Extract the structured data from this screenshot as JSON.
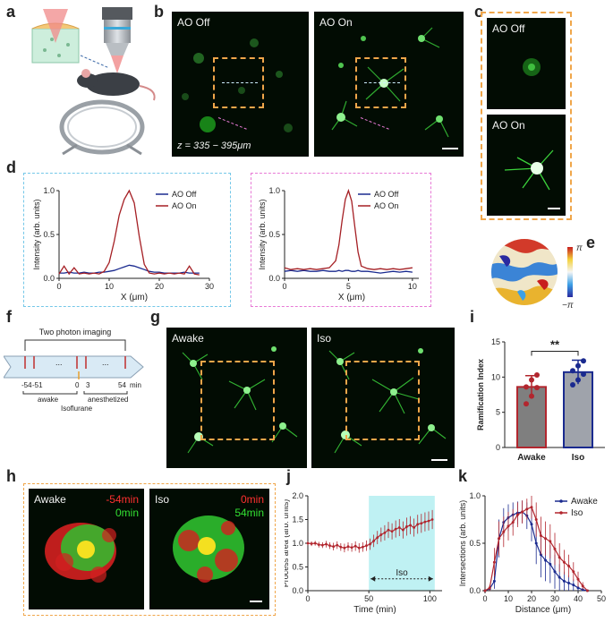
{
  "panel_labels": [
    "a",
    "b",
    "c",
    "d",
    "e",
    "f",
    "g",
    "h",
    "i",
    "j",
    "k"
  ],
  "b": {
    "left_tag": "AO Off",
    "right_tag": "AO On",
    "zlabel": "z = 335 − 395μm"
  },
  "c": {
    "top_tag": "AO Off",
    "bottom_tag": "AO On"
  },
  "e": {
    "pos_label": "π",
    "neg_label": "−π"
  },
  "f": {
    "bracket_label": "Two photon imaging",
    "ellipsis": "...",
    "ticks": [
      "-54",
      "-51",
      "0",
      "3",
      "54"
    ],
    "unit": "min",
    "awake_label": "awake",
    "anes_label": "anesthetized",
    "iso_label": "Isoflurane"
  },
  "g": {
    "left_tag": "Awake",
    "right_tag": "Iso"
  },
  "h": {
    "left_tag": "Awake",
    "left_t1": "-54min",
    "left_t2": "0min",
    "right_tag": "Iso",
    "right_t1": "0min",
    "right_t2": "54min"
  },
  "colors": {
    "ao_off": "#1a2a8f",
    "ao_on": "#a51f24",
    "awake": "#1a2a8f",
    "iso": "#b2262e",
    "cyan_box": "#74c7e8",
    "pink_box": "#e87ad6",
    "orange_box": "#f0a64a"
  },
  "chart_data": [
    {
      "id": "d-left",
      "type": "line",
      "xlabel": "X (μm)",
      "ylabel": "Intensity (arb. units)",
      "xlim": [
        0,
        30
      ],
      "ylim": [
        0,
        1.0
      ],
      "xticks": [
        "0",
        "10",
        "20",
        "30"
      ],
      "yticks": [
        "0.0",
        "0.5",
        "1.0"
      ],
      "legend": [
        "AO Off",
        "AO On"
      ],
      "x": [
        0,
        1,
        2,
        3,
        4,
        5,
        6,
        7,
        8,
        9,
        10,
        11,
        12,
        13,
        14,
        15,
        16,
        17,
        18,
        19,
        20,
        21,
        22,
        23,
        24,
        25,
        26,
        27,
        28
      ],
      "series": [
        {
          "name": "AO Off",
          "values": [
            0.06,
            0.06,
            0.07,
            0.06,
            0.06,
            0.07,
            0.06,
            0.06,
            0.07,
            0.07,
            0.08,
            0.09,
            0.11,
            0.13,
            0.15,
            0.14,
            0.12,
            0.1,
            0.08,
            0.07,
            0.07,
            0.06,
            0.06,
            0.06,
            0.06,
            0.07,
            0.06,
            0.06,
            0.06
          ]
        },
        {
          "name": "AO On",
          "values": [
            0.05,
            0.14,
            0.05,
            0.12,
            0.05,
            0.06,
            0.05,
            0.06,
            0.05,
            0.08,
            0.18,
            0.42,
            0.72,
            0.9,
            1.0,
            0.86,
            0.48,
            0.16,
            0.06,
            0.05,
            0.06,
            0.05,
            0.06,
            0.05,
            0.06,
            0.05,
            0.14,
            0.05,
            0.04
          ]
        }
      ]
    },
    {
      "id": "d-right",
      "type": "line",
      "xlabel": "X (μm)",
      "ylabel": "Intensity (arb. units)",
      "xlim": [
        0,
        10.5
      ],
      "ylim": [
        0,
        1.0
      ],
      "xticks": [
        "0",
        "5",
        "10"
      ],
      "yticks": [
        "0.0",
        "0.5",
        "1.0"
      ],
      "legend": [
        "AO Off",
        "AO On"
      ],
      "x": [
        0,
        0.5,
        1,
        1.5,
        2,
        2.5,
        3,
        3.5,
        4,
        4.25,
        4.5,
        4.75,
        5,
        5.25,
        5.5,
        5.75,
        6,
        6.5,
        7,
        7.5,
        8,
        8.5,
        9,
        9.5,
        10
      ],
      "series": [
        {
          "name": "AO Off",
          "values": [
            0.08,
            0.09,
            0.08,
            0.09,
            0.08,
            0.08,
            0.09,
            0.08,
            0.08,
            0.09,
            0.08,
            0.09,
            0.09,
            0.08,
            0.08,
            0.09,
            0.08,
            0.08,
            0.07,
            0.06,
            0.07,
            0.08,
            0.07,
            0.08,
            0.07
          ]
        },
        {
          "name": "AO On",
          "values": [
            0.12,
            0.1,
            0.11,
            0.1,
            0.11,
            0.1,
            0.11,
            0.12,
            0.2,
            0.38,
            0.66,
            0.9,
            1.0,
            0.88,
            0.58,
            0.3,
            0.14,
            0.11,
            0.1,
            0.11,
            0.1,
            0.11,
            0.1,
            0.11,
            0.12
          ]
        }
      ]
    },
    {
      "id": "i",
      "type": "bar",
      "title": "",
      "ylabel": "Ramification Index",
      "categories": [
        "Awake",
        "Iso"
      ],
      "values": [
        8.6,
        10.7
      ],
      "errors": [
        1.6,
        1.7
      ],
      "points": [
        [
          6.2,
          7.3,
          8.5,
          8.6,
          9.6,
          10.3
        ],
        [
          8.9,
          9.6,
          10.4,
          10.9,
          11.6,
          12.3
        ]
      ],
      "ylim": [
        0,
        15
      ],
      "yticks": [
        "0",
        "5",
        "10",
        "15"
      ],
      "significance": "**"
    },
    {
      "id": "j",
      "type": "line",
      "xlabel": "Time (min)",
      "ylabel": "Process area (arb. units)",
      "xlim": [
        0,
        110
      ],
      "ylim": [
        0,
        2.0
      ],
      "xticks": [
        "0",
        "50",
        "100"
      ],
      "yticks": [
        "0.0",
        "0.5",
        "1.0",
        "1.5",
        "2.0"
      ],
      "shaded_region": [
        50,
        104
      ],
      "shaded_label": "Iso",
      "x": [
        0,
        3,
        6,
        9,
        12,
        15,
        18,
        21,
        24,
        27,
        30,
        33,
        36,
        39,
        42,
        45,
        48,
        51,
        54,
        57,
        60,
        63,
        66,
        69,
        72,
        75,
        78,
        81,
        84,
        87,
        90,
        93,
        96,
        99,
        102
      ],
      "values": [
        1.0,
        0.99,
        1.0,
        0.97,
        0.96,
        0.98,
        0.95,
        0.93,
        0.96,
        0.92,
        0.9,
        0.93,
        0.91,
        0.94,
        0.9,
        0.92,
        0.95,
        0.98,
        1.05,
        1.12,
        1.18,
        1.22,
        1.28,
        1.25,
        1.3,
        1.33,
        1.28,
        1.35,
        1.38,
        1.33,
        1.4,
        1.42,
        1.45,
        1.47,
        1.5
      ],
      "errors": [
        0.04,
        0.05,
        0.05,
        0.06,
        0.06,
        0.07,
        0.07,
        0.08,
        0.08,
        0.08,
        0.09,
        0.09,
        0.09,
        0.1,
        0.1,
        0.1,
        0.11,
        0.12,
        0.13,
        0.14,
        0.15,
        0.16,
        0.17,
        0.17,
        0.18,
        0.18,
        0.18,
        0.19,
        0.19,
        0.19,
        0.2,
        0.2,
        0.2,
        0.2,
        0.2
      ]
    },
    {
      "id": "k",
      "type": "line",
      "xlabel": "Distance (μm)",
      "ylabel": "Intersections (arb. units)",
      "xlim": [
        0,
        50
      ],
      "ylim": [
        0,
        1.0
      ],
      "xticks": [
        "0",
        "10",
        "20",
        "30",
        "40",
        "50"
      ],
      "yticks": [
        "0.0",
        "0.5",
        "1.0"
      ],
      "legend": [
        "Awake",
        "Iso"
      ],
      "x": [
        0,
        2,
        4,
        6,
        8,
        10,
        12,
        14,
        16,
        18,
        20,
        22,
        24,
        26,
        28,
        30,
        32,
        34,
        36,
        38,
        40,
        42,
        44
      ],
      "series": [
        {
          "name": "Awake",
          "values": [
            0.0,
            0.02,
            0.1,
            0.55,
            0.72,
            0.77,
            0.8,
            0.82,
            0.83,
            0.79,
            0.7,
            0.5,
            0.38,
            0.32,
            0.28,
            0.2,
            0.14,
            0.1,
            0.08,
            0.06,
            0.03,
            0.01,
            0.0
          ],
          "errors": [
            0,
            0.02,
            0.08,
            0.2,
            0.15,
            0.14,
            0.13,
            0.12,
            0.12,
            0.14,
            0.18,
            0.22,
            0.24,
            0.22,
            0.2,
            0.18,
            0.14,
            0.1,
            0.08,
            0.06,
            0.04,
            0.02,
            0
          ]
        },
        {
          "name": "Iso",
          "values": [
            0.0,
            0.03,
            0.3,
            0.55,
            0.62,
            0.68,
            0.72,
            0.8,
            0.83,
            0.86,
            0.88,
            0.75,
            0.58,
            0.55,
            0.52,
            0.44,
            0.35,
            0.3,
            0.26,
            0.2,
            0.12,
            0.05,
            0.0
          ],
          "errors": [
            0,
            0.03,
            0.15,
            0.18,
            0.16,
            0.15,
            0.14,
            0.13,
            0.12,
            0.11,
            0.12,
            0.18,
            0.2,
            0.18,
            0.18,
            0.17,
            0.15,
            0.13,
            0.12,
            0.1,
            0.08,
            0.04,
            0
          ]
        }
      ]
    }
  ]
}
